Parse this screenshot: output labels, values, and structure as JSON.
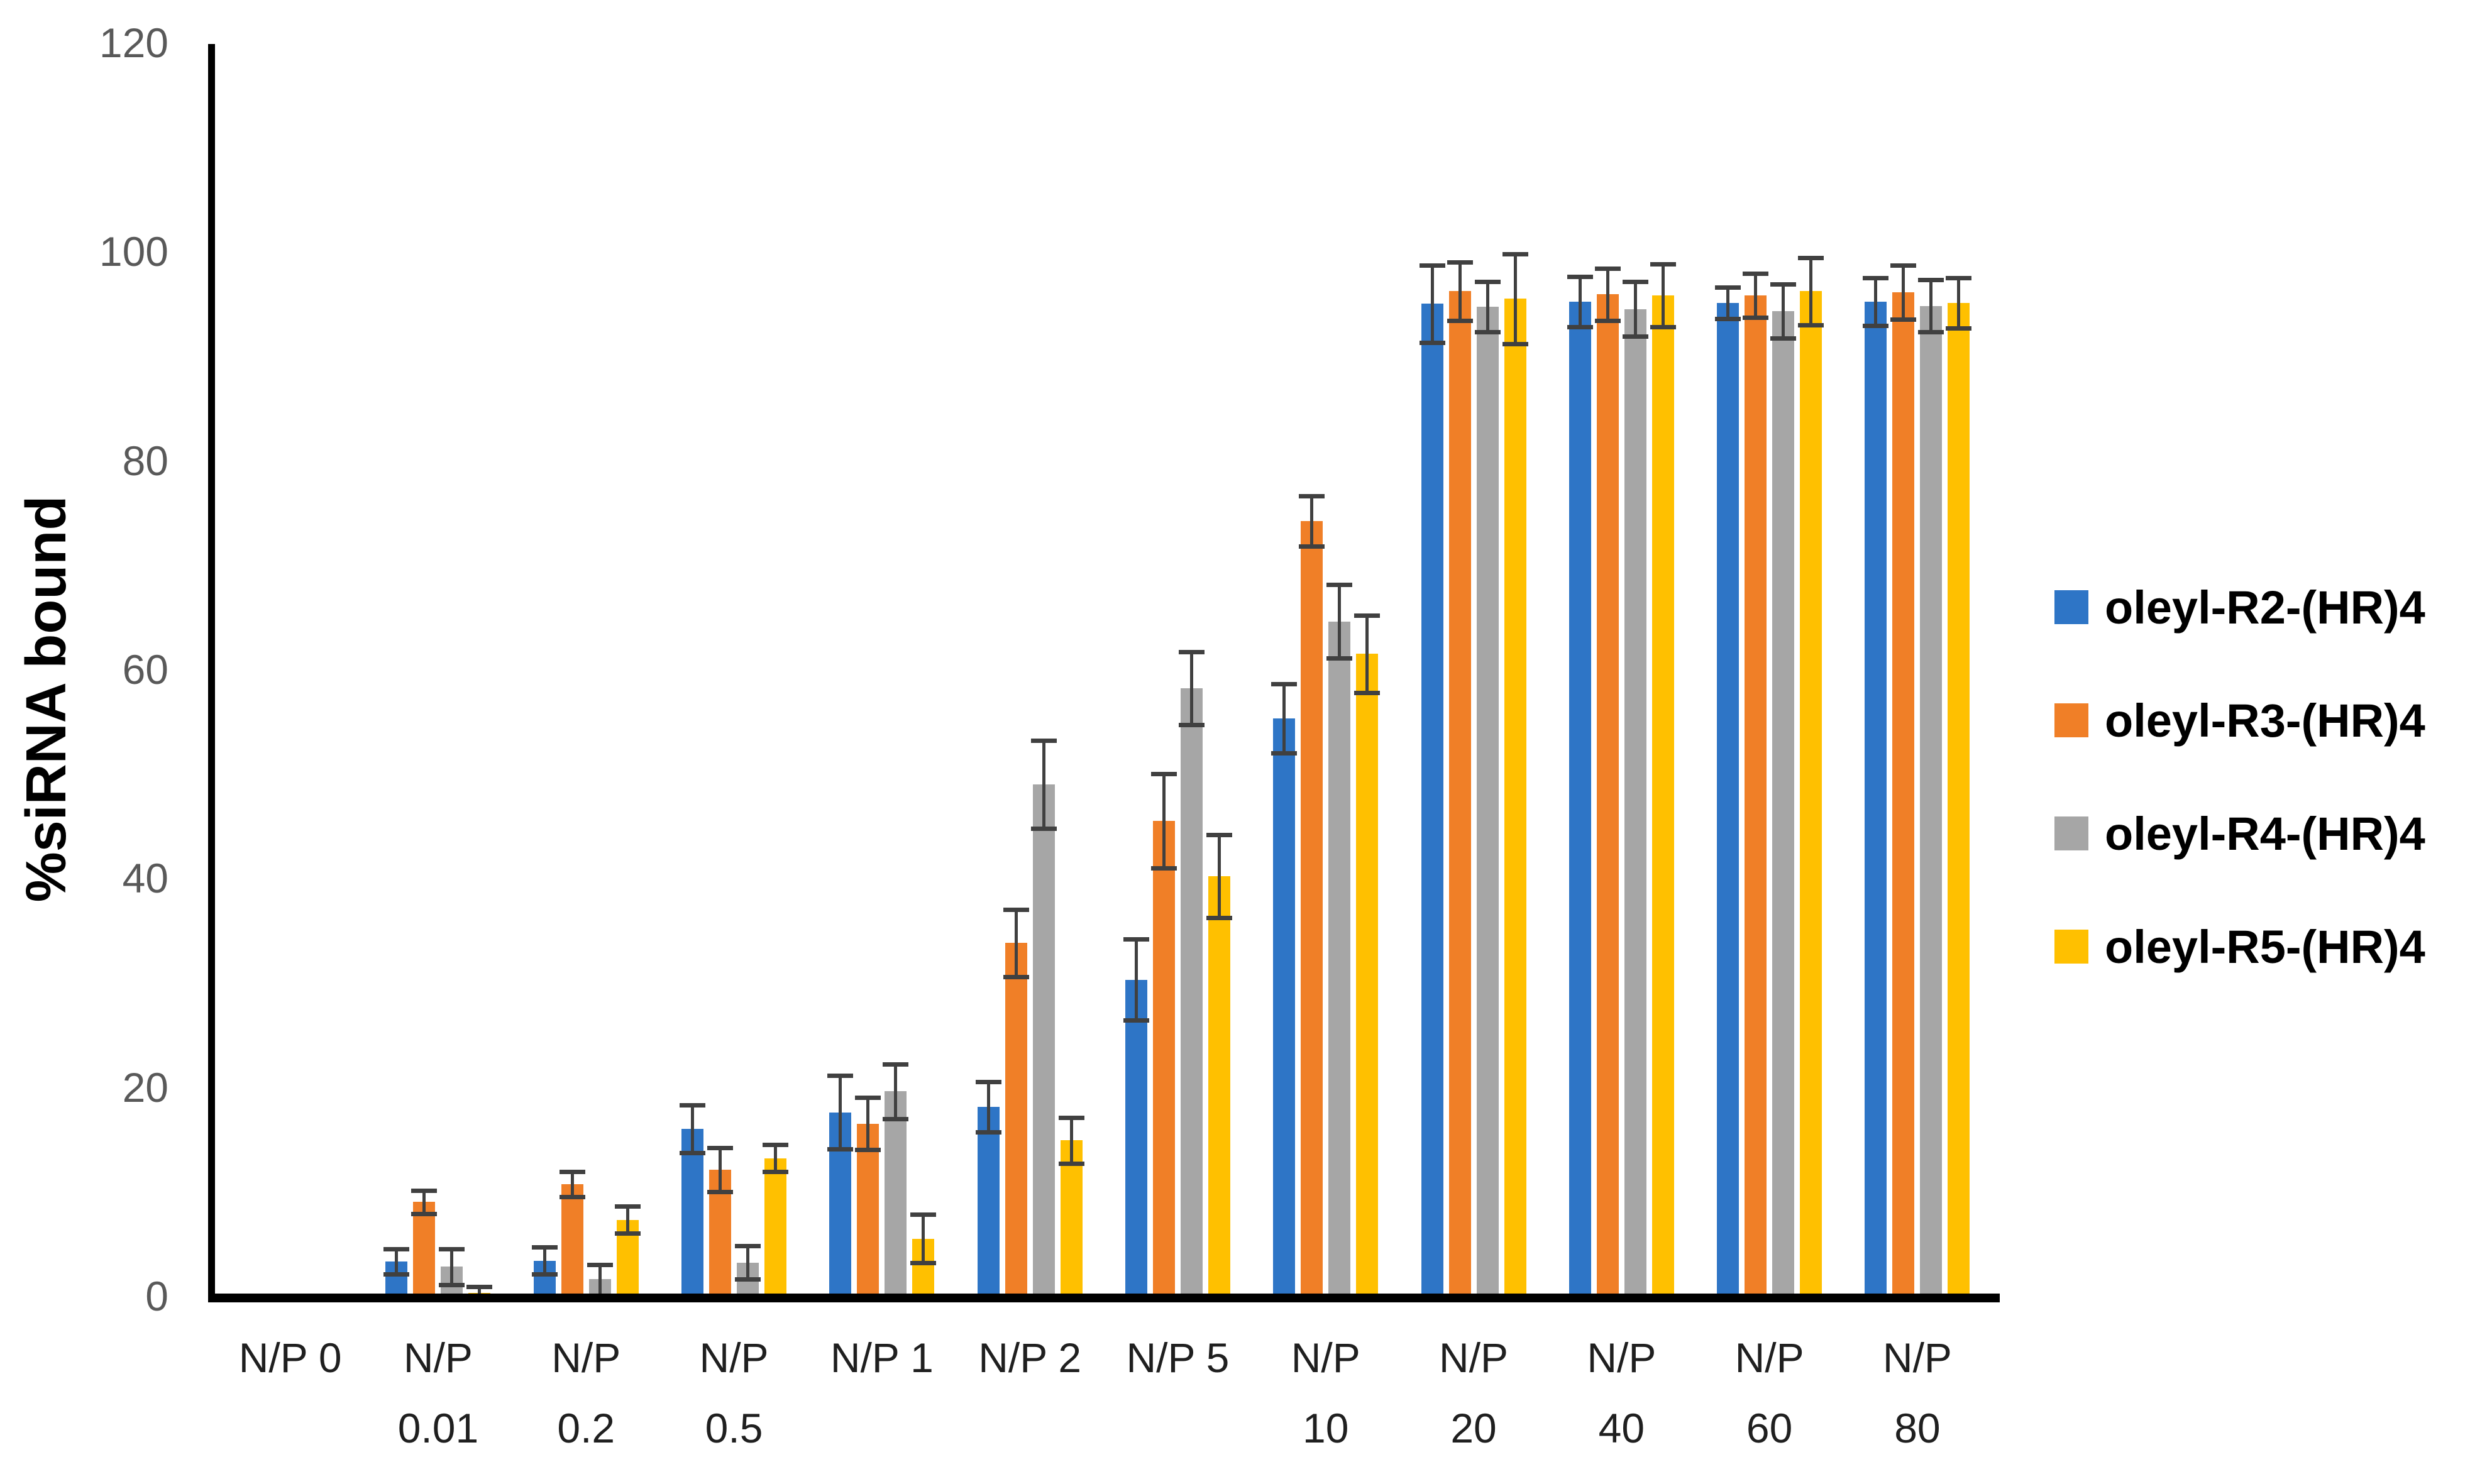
{
  "y_axis": {
    "title": "%siRNA bound",
    "ticks": [
      "0",
      "20",
      "40",
      "60",
      "80",
      "100",
      "120"
    ],
    "tick_color": "#595959",
    "axis_color": "#000000"
  },
  "x_axis": {
    "label_lines": [
      [
        "N/P 0",
        ""
      ],
      [
        "N/P",
        "0.01"
      ],
      [
        "N/P",
        "0.2"
      ],
      [
        "N/P",
        "0.5"
      ],
      [
        "N/P 1",
        ""
      ],
      [
        "N/P 2",
        ""
      ],
      [
        "N/P 5",
        ""
      ],
      [
        "N/P",
        "10"
      ],
      [
        "N/P",
        "20"
      ],
      [
        "N/P",
        "40"
      ],
      [
        "N/P",
        "60"
      ],
      [
        "N/P",
        "80"
      ]
    ]
  },
  "legend": {
    "position": "right",
    "items": [
      "oleyl-R2-(HR)4",
      "oleyl-R3-(HR)4",
      "oleyl-R4-(HR)4",
      "oleyl-R5-(HR)4"
    ],
    "swatch_colors": [
      "#2E75C6",
      "#F07F27",
      "#A6A6A6",
      "#FFC000"
    ]
  },
  "chart_data": {
    "type": "bar",
    "title": "",
    "xlabel": "",
    "ylabel": "%siRNA bound",
    "ylim": [
      0,
      120
    ],
    "ytick_interval": 20,
    "grid": false,
    "legend_position": "right",
    "error_bar_color": "#404040",
    "categories": [
      "N/P 0",
      "N/P 0.01",
      "N/P 0.2",
      "N/P 0.5",
      "N/P 1",
      "N/P 2",
      "N/P 5",
      "N/P 10",
      "N/P 20",
      "N/P 40",
      "N/P 60",
      "N/P 80"
    ],
    "series": [
      {
        "name": "oleyl-R2-(HR)4",
        "color": "#2E75C6",
        "values": [
          0,
          3.3,
          3.4,
          16.0,
          17.6,
          18.1,
          30.3,
          55.3,
          95.0,
          95.2,
          95.1,
          95.2
        ],
        "errors": [
          0,
          1.2,
          1.3,
          2.3,
          3.5,
          2.4,
          3.9,
          3.3,
          3.7,
          2.4,
          1.5,
          2.3
        ]
      },
      {
        "name": "oleyl-R3-(HR)4",
        "color": "#F07F27",
        "values": [
          0,
          9.0,
          10.7,
          12.1,
          16.5,
          33.8,
          45.5,
          74.2,
          96.2,
          95.9,
          95.8,
          96.1
        ],
        "errors": [
          0,
          1.1,
          1.2,
          2.1,
          2.5,
          3.2,
          4.5,
          2.4,
          2.8,
          2.5,
          2.1,
          2.6
        ]
      },
      {
        "name": "oleyl-R4-(HR)4",
        "color": "#A6A6A6",
        "values": [
          0,
          2.8,
          1.6,
          3.2,
          19.6,
          49.0,
          58.2,
          64.6,
          94.7,
          94.5,
          94.3,
          94.8
        ],
        "errors": [
          0,
          1.7,
          1.4,
          1.6,
          2.6,
          4.2,
          3.5,
          3.5,
          2.4,
          2.6,
          2.6,
          2.5
        ]
      },
      {
        "name": "oleyl-R5-(HR)4",
        "color": "#FFC000",
        "values": [
          0,
          0.3,
          7.3,
          13.2,
          5.5,
          14.9,
          40.2,
          61.5,
          95.5,
          95.8,
          96.2,
          95.1
        ],
        "errors": [
          0,
          0.6,
          1.3,
          1.3,
          2.3,
          2.2,
          4.0,
          3.7,
          4.3,
          3.0,
          3.2,
          2.4
        ]
      }
    ]
  }
}
